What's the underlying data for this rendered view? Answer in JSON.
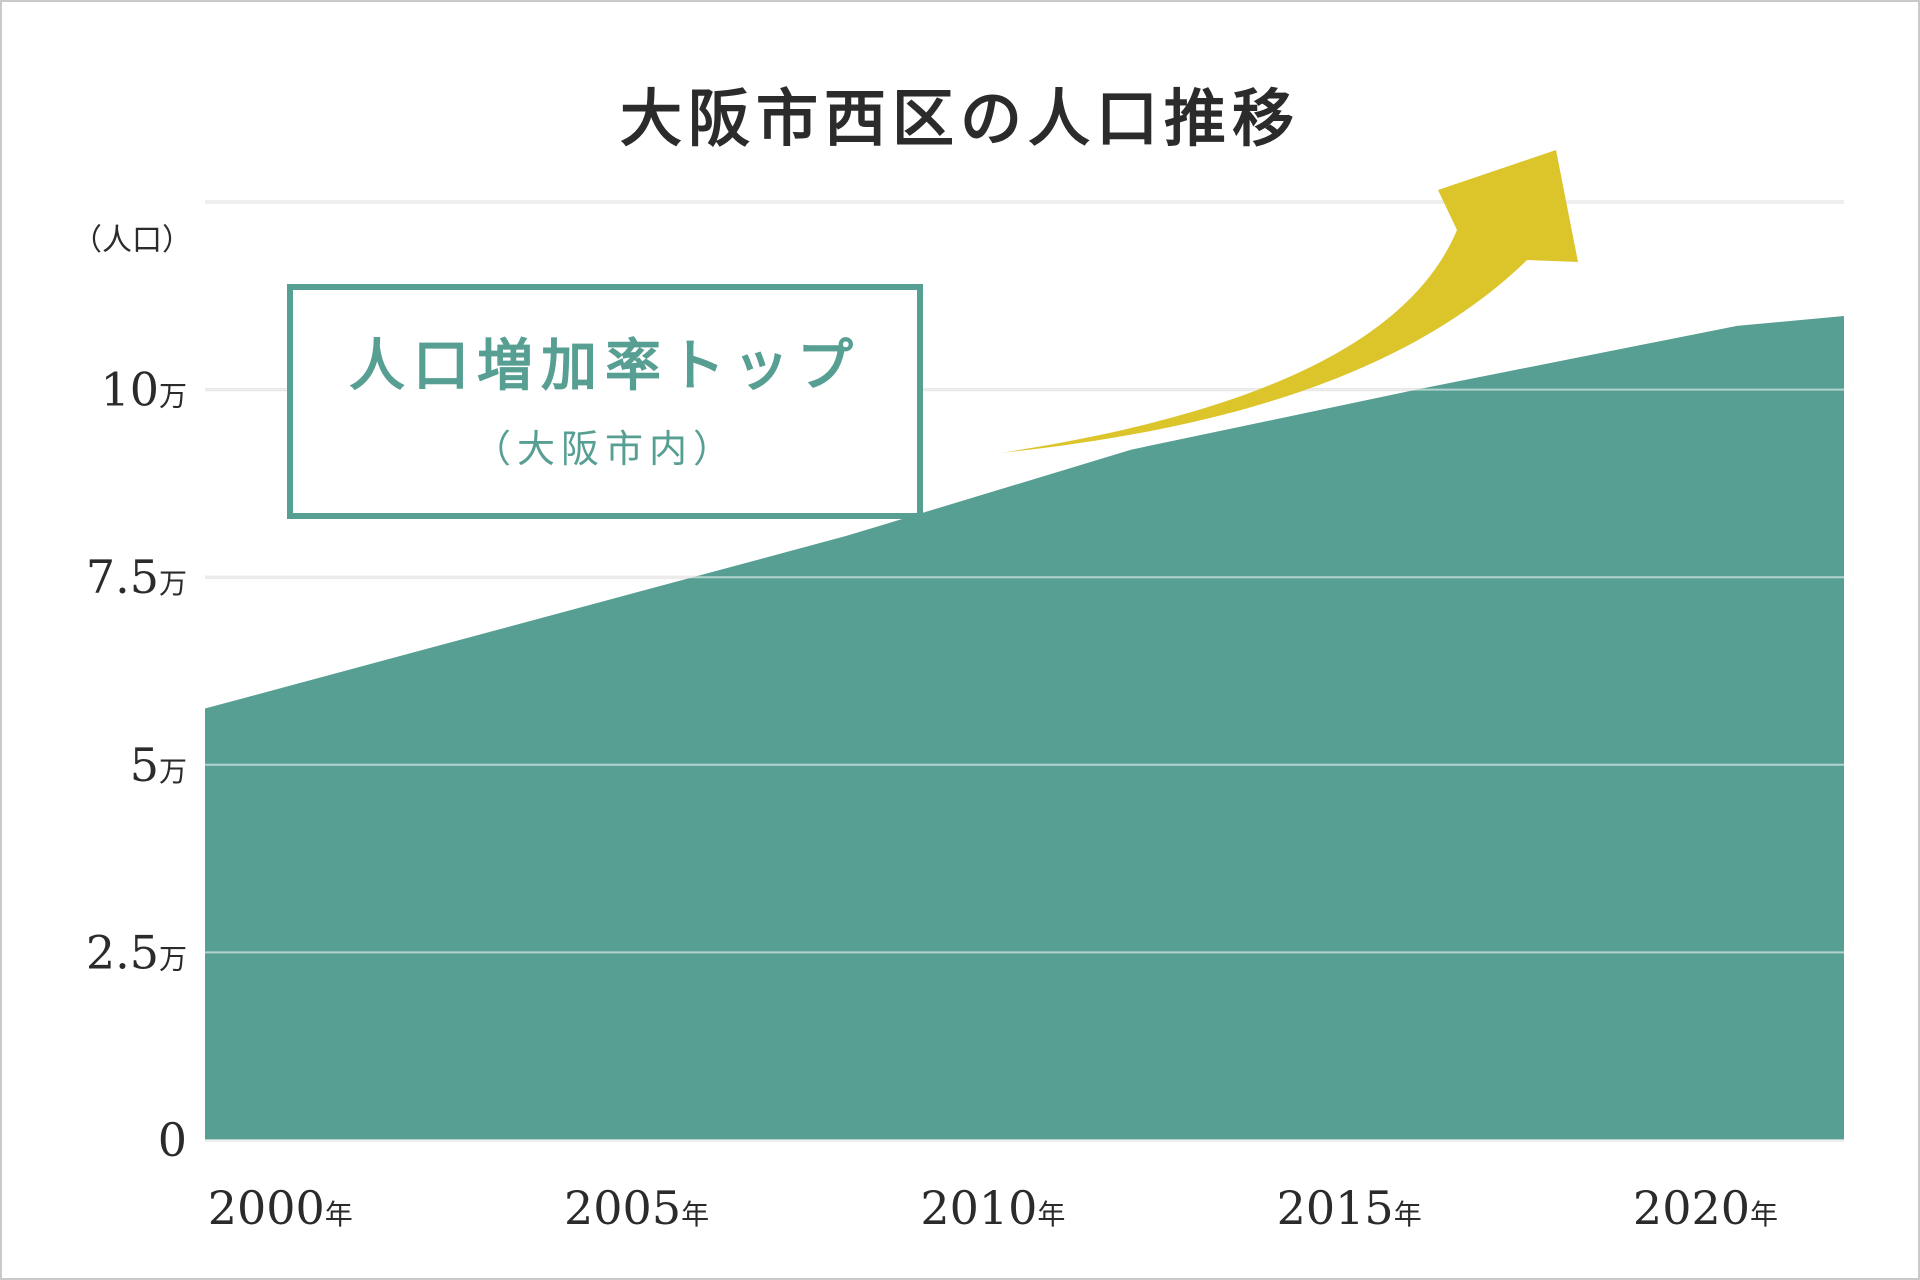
{
  "colors": {
    "area": "#579e93",
    "grid": "#dcdcdc",
    "arrow": "#dcc42b",
    "callout": "#579e93",
    "text": "#2b2b2b"
  },
  "callout": {
    "main": "人口増加率トップ",
    "sub": "（大阪市内）"
  },
  "chart_data": {
    "type": "area",
    "title": "大阪市西区の人口推移",
    "ylabel": "（人口）",
    "xlabel": "",
    "x": [
      1999,
      2008,
      2012,
      2016,
      2020.5,
      2022
    ],
    "series": [
      {
        "values": [
          57500,
          80500,
          92000,
          100000,
          108500,
          109800
        ]
      }
    ],
    "xlim": [
      1999,
      2022
    ],
    "ylim": [
      0,
      125000
    ],
    "yticks": [
      {
        "value": 0,
        "num": "0",
        "unit": ""
      },
      {
        "value": 25000,
        "num": "2.5",
        "unit": "万"
      },
      {
        "value": 50000,
        "num": "5",
        "unit": "万"
      },
      {
        "value": 75000,
        "num": "7.5",
        "unit": "万"
      },
      {
        "value": 100000,
        "num": "10",
        "unit": "万"
      }
    ],
    "xticks": [
      {
        "value": 2000,
        "num": "2000",
        "unit": "年"
      },
      {
        "value": 2005,
        "num": "2005",
        "unit": "年"
      },
      {
        "value": 2010,
        "num": "2010",
        "unit": "年"
      },
      {
        "value": 2015,
        "num": "2015",
        "unit": "年"
      },
      {
        "value": 2020,
        "num": "2020",
        "unit": "年"
      }
    ],
    "grid": true,
    "annotation": "upward arrow"
  }
}
